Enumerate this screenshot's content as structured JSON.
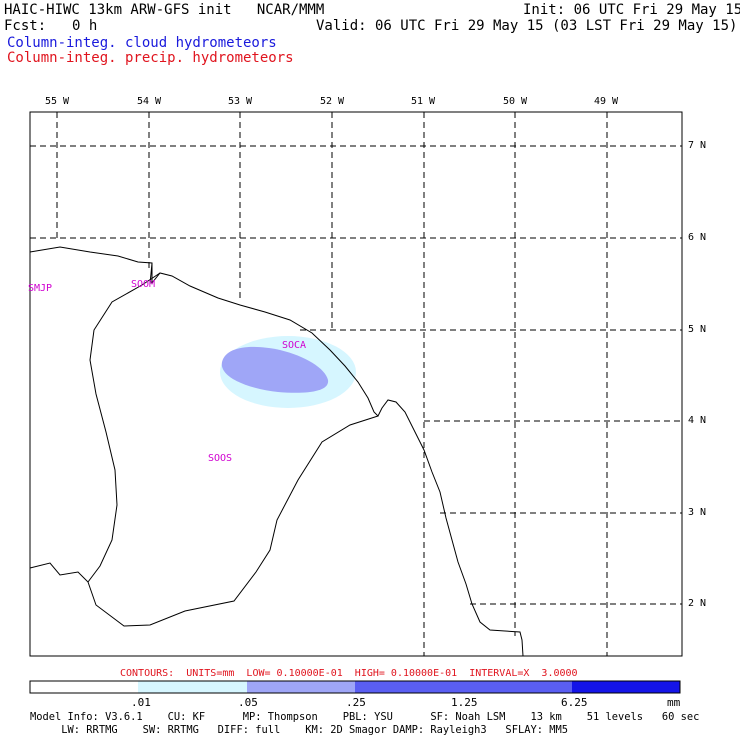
{
  "header": {
    "title_left": "HAIC-HIWC 13km ARW-GFS init   NCAR/MMM",
    "init": "Init: 06 UTC Fri 29 May 15",
    "fcst_label": "Fcst:",
    "fcst_value": "0 h",
    "valid": "Valid: 06 UTC Fri 29 May 15 (03 LST Fri 29 May 15)",
    "field1": "Column-integ. cloud hydrometeors",
    "field2": "Column-integ. precip. hydrometeors"
  },
  "map": {
    "lon_labels": [
      "55 W",
      "54 W",
      "53 W",
      "52 W",
      "51 W",
      "50 W",
      "49 W"
    ],
    "lat_labels": [
      "7 N",
      "6 N",
      "5 N",
      "4 N",
      "3 N",
      "2 N"
    ],
    "stations": [
      {
        "id": "SMJP"
      },
      {
        "id": "SOOM"
      },
      {
        "id": "SOCA"
      },
      {
        "id": "SOOS"
      }
    ]
  },
  "colors": {
    "light_cyan": "#d6f6ff",
    "periwinkle": "#9fa6f7",
    "blue_mid": "#5a5ef2",
    "blue_dark": "#1414e8",
    "contour_text": "#e0141e",
    "station": "#d000d0",
    "field1": "#1a1adc",
    "field2": "#e0141e"
  },
  "colorbar": {
    "contours_text": "CONTOURS:  UNITS=mm  LOW= 0.10000E-01  HIGH= 0.10000E-01  INTERVAL=X  3.0000",
    "labels": [
      ".01",
      ".05",
      ".25",
      "1.25",
      "6.25",
      "mm"
    ]
  },
  "model_info": {
    "line1": "Model Info: V3.6.1    CU: KF      MP: Thompson    PBL: YSU      SF: Noah LSM    13 km    51 levels   60 sec",
    "line2": "     LW: RRTMG    SW: RRTMG   DIFF: full    KM: 2D Smagor DAMP: Rayleigh3   SFLAY: MM5"
  }
}
